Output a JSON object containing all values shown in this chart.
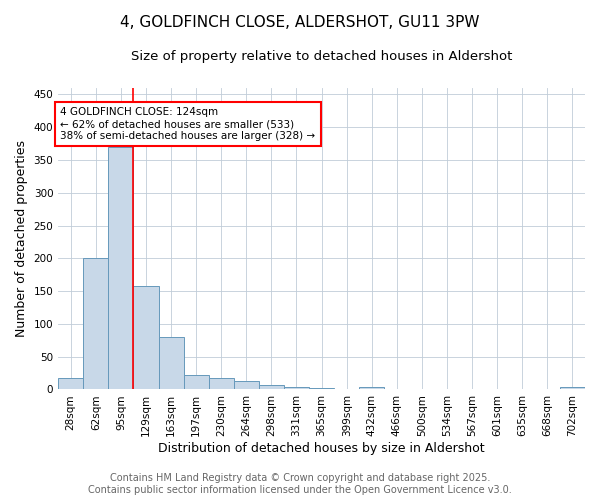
{
  "title": "4, GOLDFINCH CLOSE, ALDERSHOT, GU11 3PW",
  "subtitle": "Size of property relative to detached houses in Aldershot",
  "xlabel": "Distribution of detached houses by size in Aldershot",
  "ylabel": "Number of detached properties",
  "bin_labels": [
    "28sqm",
    "62sqm",
    "95sqm",
    "129sqm",
    "163sqm",
    "197sqm",
    "230sqm",
    "264sqm",
    "298sqm",
    "331sqm",
    "365sqm",
    "399sqm",
    "432sqm",
    "466sqm",
    "500sqm",
    "534sqm",
    "567sqm",
    "601sqm",
    "635sqm",
    "668sqm",
    "702sqm"
  ],
  "bar_heights": [
    18,
    200,
    370,
    158,
    80,
    22,
    18,
    13,
    7,
    4,
    2,
    0,
    3,
    0,
    0,
    0,
    0,
    0,
    0,
    0,
    3
  ],
  "bar_color": "#c8d8e8",
  "bar_edge_color": "#6699bb",
  "red_line_x": 2.5,
  "ylim": [
    0,
    460
  ],
  "yticks": [
    0,
    50,
    100,
    150,
    200,
    250,
    300,
    350,
    400,
    450
  ],
  "annotation_text": "4 GOLDFINCH CLOSE: 124sqm\n← 62% of detached houses are smaller (533)\n38% of semi-detached houses are larger (328) →",
  "annotation_box_facecolor": "white",
  "annotation_box_edgecolor": "red",
  "footer_line1": "Contains HM Land Registry data © Crown copyright and database right 2025.",
  "footer_line2": "Contains public sector information licensed under the Open Government Licence v3.0.",
  "bg_color": "white",
  "grid_color": "#c0ccd8",
  "title_fontsize": 11,
  "subtitle_fontsize": 9.5,
  "axis_label_fontsize": 9,
  "tick_fontsize": 7.5,
  "annotation_fontsize": 7.5,
  "footer_fontsize": 7
}
